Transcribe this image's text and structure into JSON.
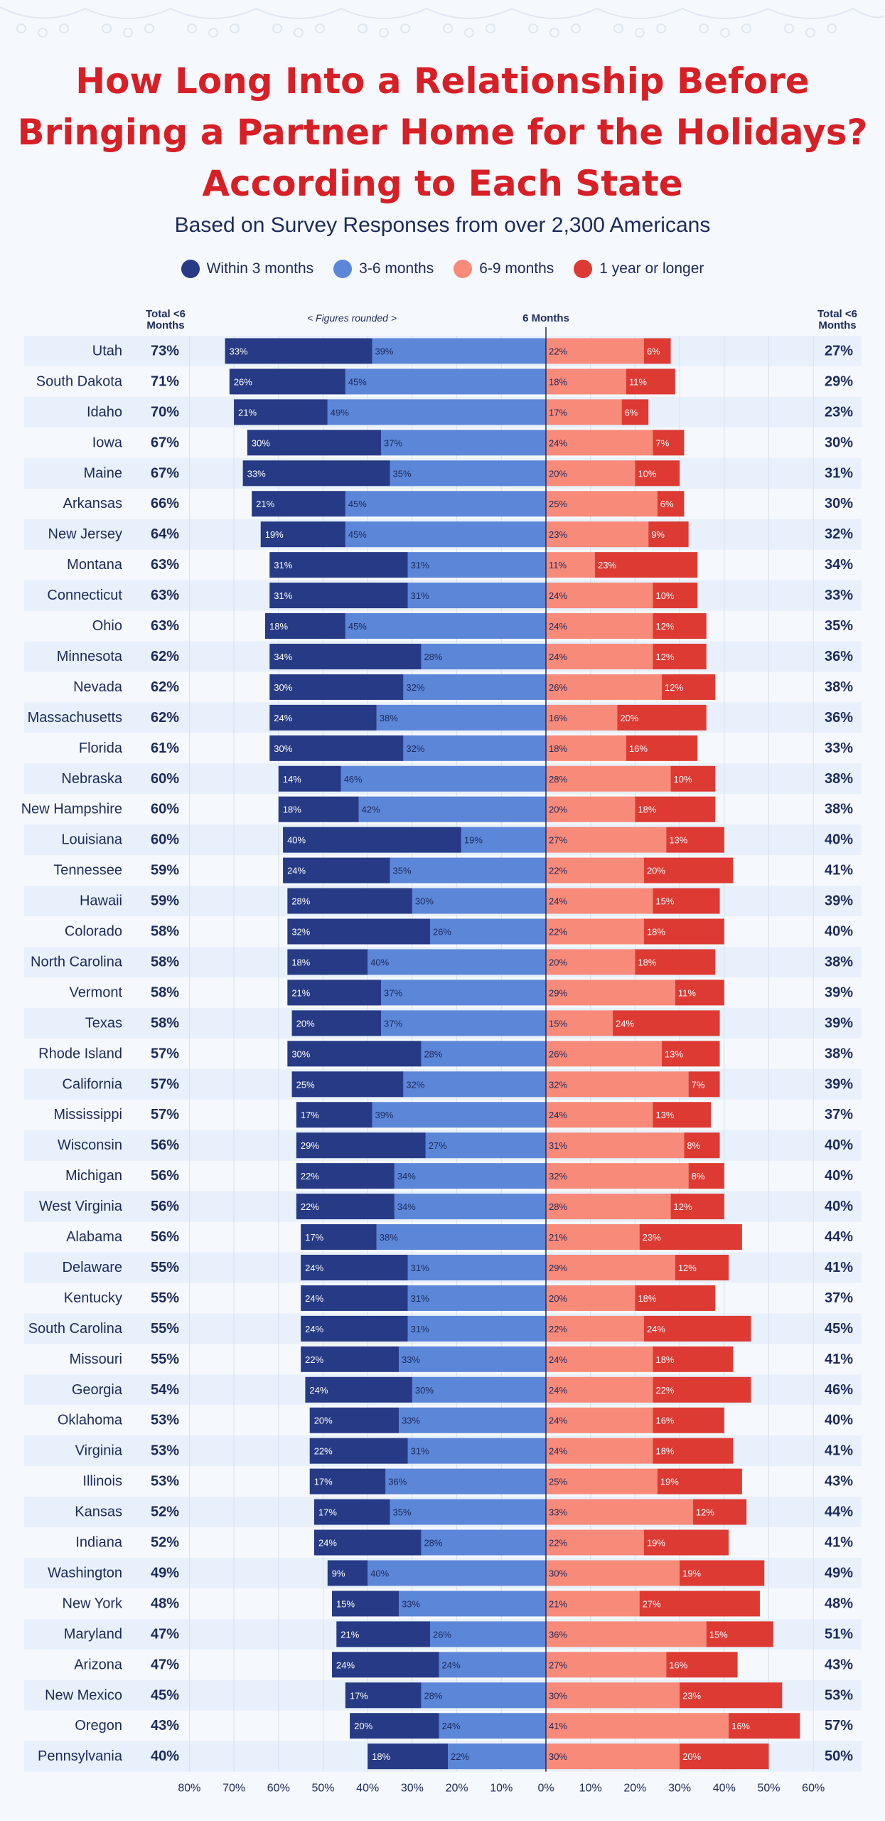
{
  "title_lines": [
    "How Long Into a Relationship Before",
    "Bringing a Partner Home for the Holidays?",
    "According to Each State"
  ],
  "subtitle": "Based on Survey Responses from over 2,300 Americans",
  "legend": [
    {
      "label": "Within 3 months",
      "color": "#263a85"
    },
    {
      "label": "3-6 months",
      "color": "#5c86d8"
    },
    {
      "label": "6-9 months",
      "color": "#f88a7a"
    },
    {
      "label": "1 year or longer",
      "color": "#dd3a33"
    }
  ],
  "header": {
    "left_total_line1": "Total <6",
    "left_total_line2": "Months",
    "note": "< Figures rounded >",
    "center": "6 Months",
    "right_total_line1": "Total <6",
    "right_total_line2": "Months"
  },
  "chart_data": {
    "type": "bar",
    "orientation": "horizontal-diverging",
    "x_ticks": [
      "80%",
      "70%",
      "60%",
      "50%",
      "40%",
      "30%",
      "20%",
      "10%",
      "0%",
      "10%",
      "20%",
      "30%",
      "40%",
      "50%",
      "60%"
    ],
    "xlim_left": [
      0,
      80
    ],
    "xlim_right": [
      0,
      60
    ],
    "series_names": [
      "Within 3 months",
      "3-6 months",
      "6-9 months",
      "1 year or longer"
    ],
    "rows": [
      {
        "state": "Utah",
        "total_lt6": "73%",
        "within3": 33,
        "m3to6": 39,
        "m6to9": 22,
        "y1plus": 6,
        "total_gt6": "27%"
      },
      {
        "state": "South Dakota",
        "total_lt6": "71%",
        "within3": 26,
        "m3to6": 45,
        "m6to9": 18,
        "y1plus": 11,
        "total_gt6": "29%"
      },
      {
        "state": "Idaho",
        "total_lt6": "70%",
        "within3": 21,
        "m3to6": 49,
        "m6to9": 17,
        "y1plus": 6,
        "total_gt6": "23%"
      },
      {
        "state": "Iowa",
        "total_lt6": "67%",
        "within3": 30,
        "m3to6": 37,
        "m6to9": 24,
        "y1plus": 7,
        "total_gt6": "30%"
      },
      {
        "state": "Maine",
        "total_lt6": "67%",
        "within3": 33,
        "m3to6": 35,
        "m6to9": 20,
        "y1plus": 10,
        "total_gt6": "31%"
      },
      {
        "state": "Arkansas",
        "total_lt6": "66%",
        "within3": 21,
        "m3to6": 45,
        "m6to9": 25,
        "y1plus": 6,
        "total_gt6": "30%"
      },
      {
        "state": "New Jersey",
        "total_lt6": "64%",
        "within3": 19,
        "m3to6": 45,
        "m6to9": 23,
        "y1plus": 9,
        "total_gt6": "32%"
      },
      {
        "state": "Montana",
        "total_lt6": "63%",
        "within3": 31,
        "m3to6": 31,
        "m6to9": 11,
        "y1plus": 23,
        "total_gt6": "34%"
      },
      {
        "state": "Connecticut",
        "total_lt6": "63%",
        "within3": 31,
        "m3to6": 31,
        "m6to9": 24,
        "y1plus": 10,
        "total_gt6": "33%"
      },
      {
        "state": "Ohio",
        "total_lt6": "63%",
        "within3": 18,
        "m3to6": 45,
        "m6to9": 24,
        "y1plus": 12,
        "total_gt6": "35%"
      },
      {
        "state": "Minnesota",
        "total_lt6": "62%",
        "within3": 34,
        "m3to6": 28,
        "m6to9": 24,
        "y1plus": 12,
        "total_gt6": "36%"
      },
      {
        "state": "Nevada",
        "total_lt6": "62%",
        "within3": 30,
        "m3to6": 32,
        "m6to9": 26,
        "y1plus": 12,
        "total_gt6": "38%"
      },
      {
        "state": "Massachusetts",
        "total_lt6": "62%",
        "within3": 24,
        "m3to6": 38,
        "m6to9": 16,
        "y1plus": 20,
        "total_gt6": "36%"
      },
      {
        "state": "Florida",
        "total_lt6": "61%",
        "within3": 30,
        "m3to6": 32,
        "m6to9": 18,
        "y1plus": 16,
        "total_gt6": "33%"
      },
      {
        "state": "Nebraska",
        "total_lt6": "60%",
        "within3": 14,
        "m3to6": 46,
        "m6to9": 28,
        "y1plus": 10,
        "total_gt6": "38%"
      },
      {
        "state": "New Hampshire",
        "total_lt6": "60%",
        "within3": 18,
        "m3to6": 42,
        "m6to9": 20,
        "y1plus": 18,
        "total_gt6": "38%"
      },
      {
        "state": "Louisiana",
        "total_lt6": "60%",
        "within3": 40,
        "m3to6": 19,
        "m6to9": 27,
        "y1plus": 13,
        "total_gt6": "40%"
      },
      {
        "state": "Tennessee",
        "total_lt6": "59%",
        "within3": 24,
        "m3to6": 35,
        "m6to9": 22,
        "y1plus": 20,
        "total_gt6": "41%"
      },
      {
        "state": "Hawaii",
        "total_lt6": "59%",
        "within3": 28,
        "m3to6": 30,
        "m6to9": 24,
        "y1plus": 15,
        "total_gt6": "39%"
      },
      {
        "state": "Colorado",
        "total_lt6": "58%",
        "within3": 32,
        "m3to6": 26,
        "m6to9": 22,
        "y1plus": 18,
        "total_gt6": "40%"
      },
      {
        "state": "North Carolina",
        "total_lt6": "58%",
        "within3": 18,
        "m3to6": 40,
        "m6to9": 20,
        "y1plus": 18,
        "total_gt6": "38%"
      },
      {
        "state": "Vermont",
        "total_lt6": "58%",
        "within3": 21,
        "m3to6": 37,
        "m6to9": 29,
        "y1plus": 11,
        "total_gt6": "39%"
      },
      {
        "state": "Texas",
        "total_lt6": "58%",
        "within3": 20,
        "m3to6": 37,
        "m6to9": 15,
        "y1plus": 24,
        "total_gt6": "39%"
      },
      {
        "state": "Rhode Island",
        "total_lt6": "57%",
        "within3": 30,
        "m3to6": 28,
        "m6to9": 26,
        "y1plus": 13,
        "total_gt6": "38%"
      },
      {
        "state": "California",
        "total_lt6": "57%",
        "within3": 25,
        "m3to6": 32,
        "m6to9": 32,
        "y1plus": 7,
        "total_gt6": "39%"
      },
      {
        "state": "Mississippi",
        "total_lt6": "57%",
        "within3": 17,
        "m3to6": 39,
        "m6to9": 24,
        "y1plus": 13,
        "total_gt6": "37%"
      },
      {
        "state": "Wisconsin",
        "total_lt6": "56%",
        "within3": 29,
        "m3to6": 27,
        "m6to9": 31,
        "y1plus": 8,
        "total_gt6": "40%"
      },
      {
        "state": "Michigan",
        "total_lt6": "56%",
        "within3": 22,
        "m3to6": 34,
        "m6to9": 32,
        "y1plus": 8,
        "total_gt6": "40%"
      },
      {
        "state": "West Virginia",
        "total_lt6": "56%",
        "within3": 22,
        "m3to6": 34,
        "m6to9": 28,
        "y1plus": 12,
        "total_gt6": "40%"
      },
      {
        "state": "Alabama",
        "total_lt6": "56%",
        "within3": 17,
        "m3to6": 38,
        "m6to9": 21,
        "y1plus": 23,
        "total_gt6": "44%"
      },
      {
        "state": "Delaware",
        "total_lt6": "55%",
        "within3": 24,
        "m3to6": 31,
        "m6to9": 29,
        "y1plus": 12,
        "total_gt6": "41%"
      },
      {
        "state": "Kentucky",
        "total_lt6": "55%",
        "within3": 24,
        "m3to6": 31,
        "m6to9": 20,
        "y1plus": 18,
        "total_gt6": "37%"
      },
      {
        "state": "South Carolina",
        "total_lt6": "55%",
        "within3": 24,
        "m3to6": 31,
        "m6to9": 22,
        "y1plus": 24,
        "total_gt6": "45%"
      },
      {
        "state": "Missouri",
        "total_lt6": "55%",
        "within3": 22,
        "m3to6": 33,
        "m6to9": 24,
        "y1plus": 18,
        "total_gt6": "41%"
      },
      {
        "state": "Georgia",
        "total_lt6": "54%",
        "within3": 24,
        "m3to6": 30,
        "m6to9": 24,
        "y1plus": 22,
        "total_gt6": "46%"
      },
      {
        "state": "Oklahoma",
        "total_lt6": "53%",
        "within3": 20,
        "m3to6": 33,
        "m6to9": 24,
        "y1plus": 16,
        "total_gt6": "40%"
      },
      {
        "state": "Virginia",
        "total_lt6": "53%",
        "within3": 22,
        "m3to6": 31,
        "m6to9": 24,
        "y1plus": 18,
        "total_gt6": "41%"
      },
      {
        "state": "Illinois",
        "total_lt6": "53%",
        "within3": 17,
        "m3to6": 36,
        "m6to9": 25,
        "y1plus": 19,
        "total_gt6": "43%"
      },
      {
        "state": "Kansas",
        "total_lt6": "52%",
        "within3": 17,
        "m3to6": 35,
        "m6to9": 33,
        "y1plus": 12,
        "total_gt6": "44%"
      },
      {
        "state": "Indiana",
        "total_lt6": "52%",
        "within3": 24,
        "m3to6": 28,
        "m6to9": 22,
        "y1plus": 19,
        "total_gt6": "41%"
      },
      {
        "state": "Washington",
        "total_lt6": "49%",
        "within3": 9,
        "m3to6": 40,
        "m6to9": 30,
        "y1plus": 19,
        "total_gt6": "49%"
      },
      {
        "state": "New York",
        "total_lt6": "48%",
        "within3": 15,
        "m3to6": 33,
        "m6to9": 21,
        "y1plus": 27,
        "total_gt6": "48%"
      },
      {
        "state": "Maryland",
        "total_lt6": "47%",
        "within3": 21,
        "m3to6": 26,
        "m6to9": 36,
        "y1plus": 15,
        "total_gt6": "51%"
      },
      {
        "state": "Arizona",
        "total_lt6": "47%",
        "within3": 24,
        "m3to6": 24,
        "m6to9": 27,
        "y1plus": 16,
        "total_gt6": "43%"
      },
      {
        "state": "New Mexico",
        "total_lt6": "45%",
        "within3": 17,
        "m3to6": 28,
        "m6to9": 30,
        "y1plus": 23,
        "total_gt6": "53%"
      },
      {
        "state": "Oregon",
        "total_lt6": "43%",
        "within3": 20,
        "m3to6": 24,
        "m6to9": 41,
        "y1plus": 16,
        "total_gt6": "57%"
      },
      {
        "state": "Pennsylvania",
        "total_lt6": "40%",
        "within3": 18,
        "m3to6": 22,
        "m6to9": 30,
        "y1plus": 20,
        "total_gt6": "50%"
      }
    ]
  }
}
